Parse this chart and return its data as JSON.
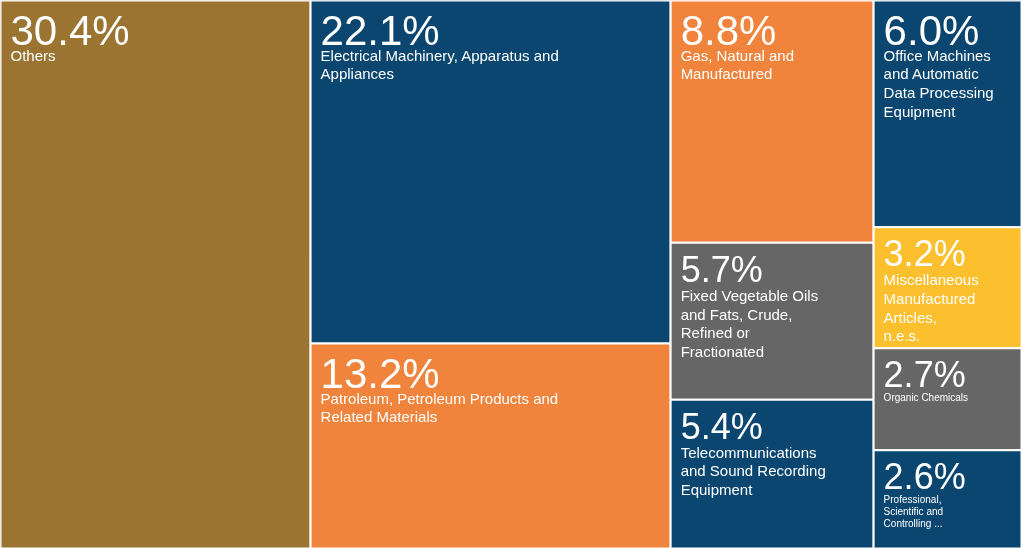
{
  "chart_data": {
    "type": "other",
    "categories": [
      "Others",
      "Electrical Machinery, Apparatus and Appliances",
      "Patroleum, Petroleum Products and Related Materials",
      "Gas, Natural and Manufactured",
      "Fixed Vegetable Oils and Fats, Crude, Refined or Fractionated",
      "Telecommunications and Sound Recording Equipment",
      "Office Machines and Automatic Data Processing Equipment",
      "Miscellaneous Manufactured Articles, n.e.s.",
      "Organic Chemicals",
      "Professional, Scientific and Controlling ..."
    ],
    "values": [
      30.4,
      22.1,
      13.2,
      8.8,
      5.7,
      5.4,
      6.0,
      3.2,
      2.7,
      2.6
    ],
    "value_labels": [
      "30.4%",
      "22.1%",
      "13.2%",
      "8.8%",
      "5.7%",
      "5.4%",
      "6.0%",
      "3.2%",
      "2.7%",
      "2.6%"
    ],
    "colors": [
      "#9a7430",
      "#0b4670",
      "#f0843c",
      "#f0843c",
      "#666666",
      "#0b4670",
      "#0b4670",
      "#fcbf2e",
      "#666666",
      "#0b4670"
    ]
  }
}
